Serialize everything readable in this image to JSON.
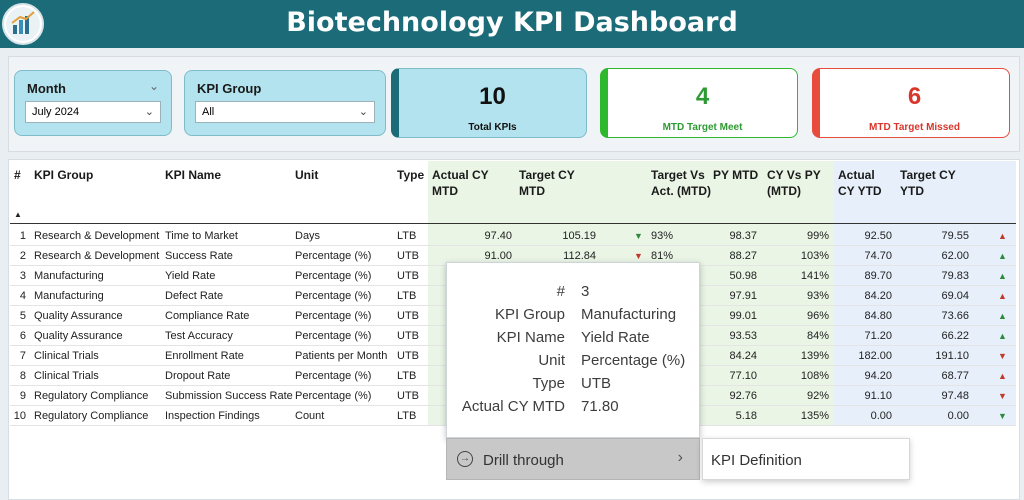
{
  "header": {
    "title": "Biotechnology KPI Dashboard",
    "logo_icon": "company-logo-icon"
  },
  "filters": {
    "month": {
      "label": "Month",
      "value": "July 2024"
    },
    "kpi_group": {
      "label": "KPI Group",
      "value": "All"
    }
  },
  "cards": [
    {
      "value": "10",
      "label": "Total KPIs",
      "accent": "#1b6b78",
      "bg": "#b3e3ee",
      "text_color": "#111111"
    },
    {
      "value": "4",
      "label": "MTD Target Meet",
      "accent": "#2eb82e",
      "bg": "#ffffff",
      "text_color": "#2e9a32"
    },
    {
      "value": "6",
      "label": "MTD Target Missed",
      "accent": "#e74c3c",
      "bg": "#ffffff",
      "text_color": "#d9362b"
    }
  ],
  "table": {
    "headers": {
      "num": "#",
      "group": "KPI Group",
      "name": "KPI Name",
      "unit": "Unit",
      "type": "Type",
      "actual_mtd": "Actual CY MTD",
      "target_mtd": "Target CY MTD",
      "tva_mtd": "Target Vs Act. (MTD)",
      "py_mtd": "PY MTD",
      "cy_py_mtd": "CY Vs PY (MTD)",
      "actual_ytd": "Actual CY YTD",
      "target_ytd": "Target CY YTD"
    },
    "rows": [
      {
        "num": "1",
        "group": "Research & Development",
        "name": "Time to Market",
        "unit": "Days",
        "type": "LTB",
        "actual_mtd": "97.40",
        "target_mtd": "105.19",
        "mtd_arrow": "down-green",
        "tva": "93%",
        "py_mtd": "98.37",
        "cy_py": "99%",
        "actual_ytd": "92.50",
        "target_ytd": "79.55",
        "ytd_arrow": "up-red"
      },
      {
        "num": "2",
        "group": "Research & Development",
        "name": "Success Rate",
        "unit": "Percentage (%)",
        "type": "UTB",
        "actual_mtd": "91.00",
        "target_mtd": "112.84",
        "mtd_arrow": "down-red",
        "tva": "81%",
        "py_mtd": "88.27",
        "cy_py": "103%",
        "actual_ytd": "74.70",
        "target_ytd": "62.00",
        "ytd_arrow": "up-green"
      },
      {
        "num": "3",
        "group": "Manufacturing",
        "name": "Yield Rate",
        "unit": "Percentage (%)",
        "type": "UTB",
        "actual_mtd": "",
        "target_mtd": "",
        "mtd_arrow": "",
        "tva": "",
        "py_mtd": "50.98",
        "cy_py": "141%",
        "actual_ytd": "89.70",
        "target_ytd": "79.83",
        "ytd_arrow": "up-green"
      },
      {
        "num": "4",
        "group": "Manufacturing",
        "name": "Defect Rate",
        "unit": "Percentage (%)",
        "type": "LTB",
        "actual_mtd": "",
        "target_mtd": "",
        "mtd_arrow": "",
        "tva": "",
        "py_mtd": "97.91",
        "cy_py": "93%",
        "actual_ytd": "84.20",
        "target_ytd": "69.04",
        "ytd_arrow": "up-red"
      },
      {
        "num": "5",
        "group": "Quality Assurance",
        "name": "Compliance Rate",
        "unit": "Percentage (%)",
        "type": "UTB",
        "actual_mtd": "",
        "target_mtd": "",
        "mtd_arrow": "",
        "tva": "",
        "py_mtd": "99.01",
        "cy_py": "96%",
        "actual_ytd": "84.80",
        "target_ytd": "73.66",
        "ytd_arrow": "up-green"
      },
      {
        "num": "6",
        "group": "Quality Assurance",
        "name": "Test Accuracy",
        "unit": "Percentage (%)",
        "type": "UTB",
        "actual_mtd": "",
        "target_mtd": "",
        "mtd_arrow": "",
        "tva": "",
        "py_mtd": "93.53",
        "cy_py": "84%",
        "actual_ytd": "71.20",
        "target_ytd": "66.22",
        "ytd_arrow": "up-green"
      },
      {
        "num": "7",
        "group": "Clinical Trials",
        "name": "Enrollment Rate",
        "unit": "Patients per Month",
        "type": "UTB",
        "actual_mtd": "",
        "target_mtd": "",
        "mtd_arrow": "",
        "tva": "",
        "py_mtd": "84.24",
        "cy_py": "139%",
        "actual_ytd": "182.00",
        "target_ytd": "191.10",
        "ytd_arrow": "down-red"
      },
      {
        "num": "8",
        "group": "Clinical Trials",
        "name": "Dropout Rate",
        "unit": "Percentage (%)",
        "type": "LTB",
        "actual_mtd": "",
        "target_mtd": "",
        "mtd_arrow": "",
        "tva": "",
        "py_mtd": "77.10",
        "cy_py": "108%",
        "actual_ytd": "94.20",
        "target_ytd": "68.77",
        "ytd_arrow": "up-red"
      },
      {
        "num": "9",
        "group": "Regulatory Compliance",
        "name": "Submission Success Rate",
        "unit": "Percentage (%)",
        "type": "UTB",
        "actual_mtd": "",
        "target_mtd": "",
        "mtd_arrow": "",
        "tva": "",
        "py_mtd": "92.76",
        "cy_py": "92%",
        "actual_ytd": "91.10",
        "target_ytd": "97.48",
        "ytd_arrow": "down-red"
      },
      {
        "num": "10",
        "group": "Regulatory Compliance",
        "name": "Inspection Findings",
        "unit": "Count",
        "type": "LTB",
        "actual_mtd": "",
        "target_mtd": "",
        "mtd_arrow": "",
        "tva": "",
        "py_mtd": "5.18",
        "cy_py": "135%",
        "actual_ytd": "0.00",
        "target_ytd": "0.00",
        "ytd_arrow": "down-green"
      }
    ]
  },
  "tooltip": {
    "rows": [
      {
        "key": "#",
        "value": "3"
      },
      {
        "key": "KPI Group",
        "value": "Manufacturing"
      },
      {
        "key": "KPI Name",
        "value": "Yield Rate"
      },
      {
        "key": "Unit",
        "value": "Percentage (%)"
      },
      {
        "key": "Type",
        "value": "UTB"
      },
      {
        "key": "Actual CY MTD",
        "value": "71.80"
      }
    ]
  },
  "context_menu": {
    "item": "Drill through",
    "submenu_item": "KPI Definition"
  }
}
